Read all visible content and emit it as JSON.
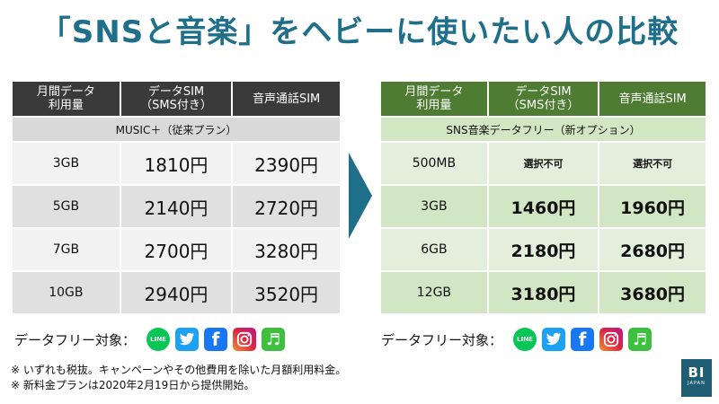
{
  "title": "「SNSと音楽」をヘビーに使いたい人の比較",
  "left": {
    "headers": [
      "月間データ\n利用量",
      "データSIM\n（SMS付き）",
      "音声通話SIM"
    ],
    "plan": "MUSIC＋（従来プラン）",
    "rows": [
      {
        "cap": "3GB",
        "data": "1810円",
        "voice": "2390円"
      },
      {
        "cap": "5GB",
        "data": "2140円",
        "voice": "2720円"
      },
      {
        "cap": "7GB",
        "data": "2700円",
        "voice": "3280円"
      },
      {
        "cap": "10GB",
        "data": "2940円",
        "voice": "3520円"
      }
    ],
    "free_label": "データフリー対象："
  },
  "right": {
    "headers": [
      "月間データ\n利用量",
      "データSIM\n（SMS付き）",
      "音声通話SIM"
    ],
    "plan": "SNS音楽データフリー（新オプション）",
    "rows": [
      {
        "cap": "500MB",
        "data": "選択不可",
        "voice": "選択不可"
      },
      {
        "cap": "3GB",
        "data": "1460円",
        "voice": "1960円"
      },
      {
        "cap": "6GB",
        "data": "2180円",
        "voice": "2680円"
      },
      {
        "cap": "12GB",
        "data": "3180円",
        "voice": "3680円"
      }
    ],
    "free_label": "データフリー対象："
  },
  "icons": [
    {
      "name": "line-icon",
      "color": "#06c755",
      "text": "LINE"
    },
    {
      "name": "twitter-icon",
      "color": "#1da1f2"
    },
    {
      "name": "facebook-icon",
      "color": "#1877f2",
      "text": "f"
    },
    {
      "name": "instagram-icon",
      "color": "#c13584"
    },
    {
      "name": "music-icon",
      "color": "#3fbf3f"
    }
  ],
  "notes": [
    "※ いずれも税抜。キャンペーンやその他費用を除いた月額利用料金。",
    "※ 新料金プランは2020年2月19日から提供開始。"
  ],
  "logo": {
    "big": "BI",
    "small": "JAPAN"
  },
  "colors": {
    "title": "#1f6f8b",
    "arrow": "#1f6f8b",
    "left_header": "#3a3a3a",
    "right_header": "#4e7c33"
  }
}
